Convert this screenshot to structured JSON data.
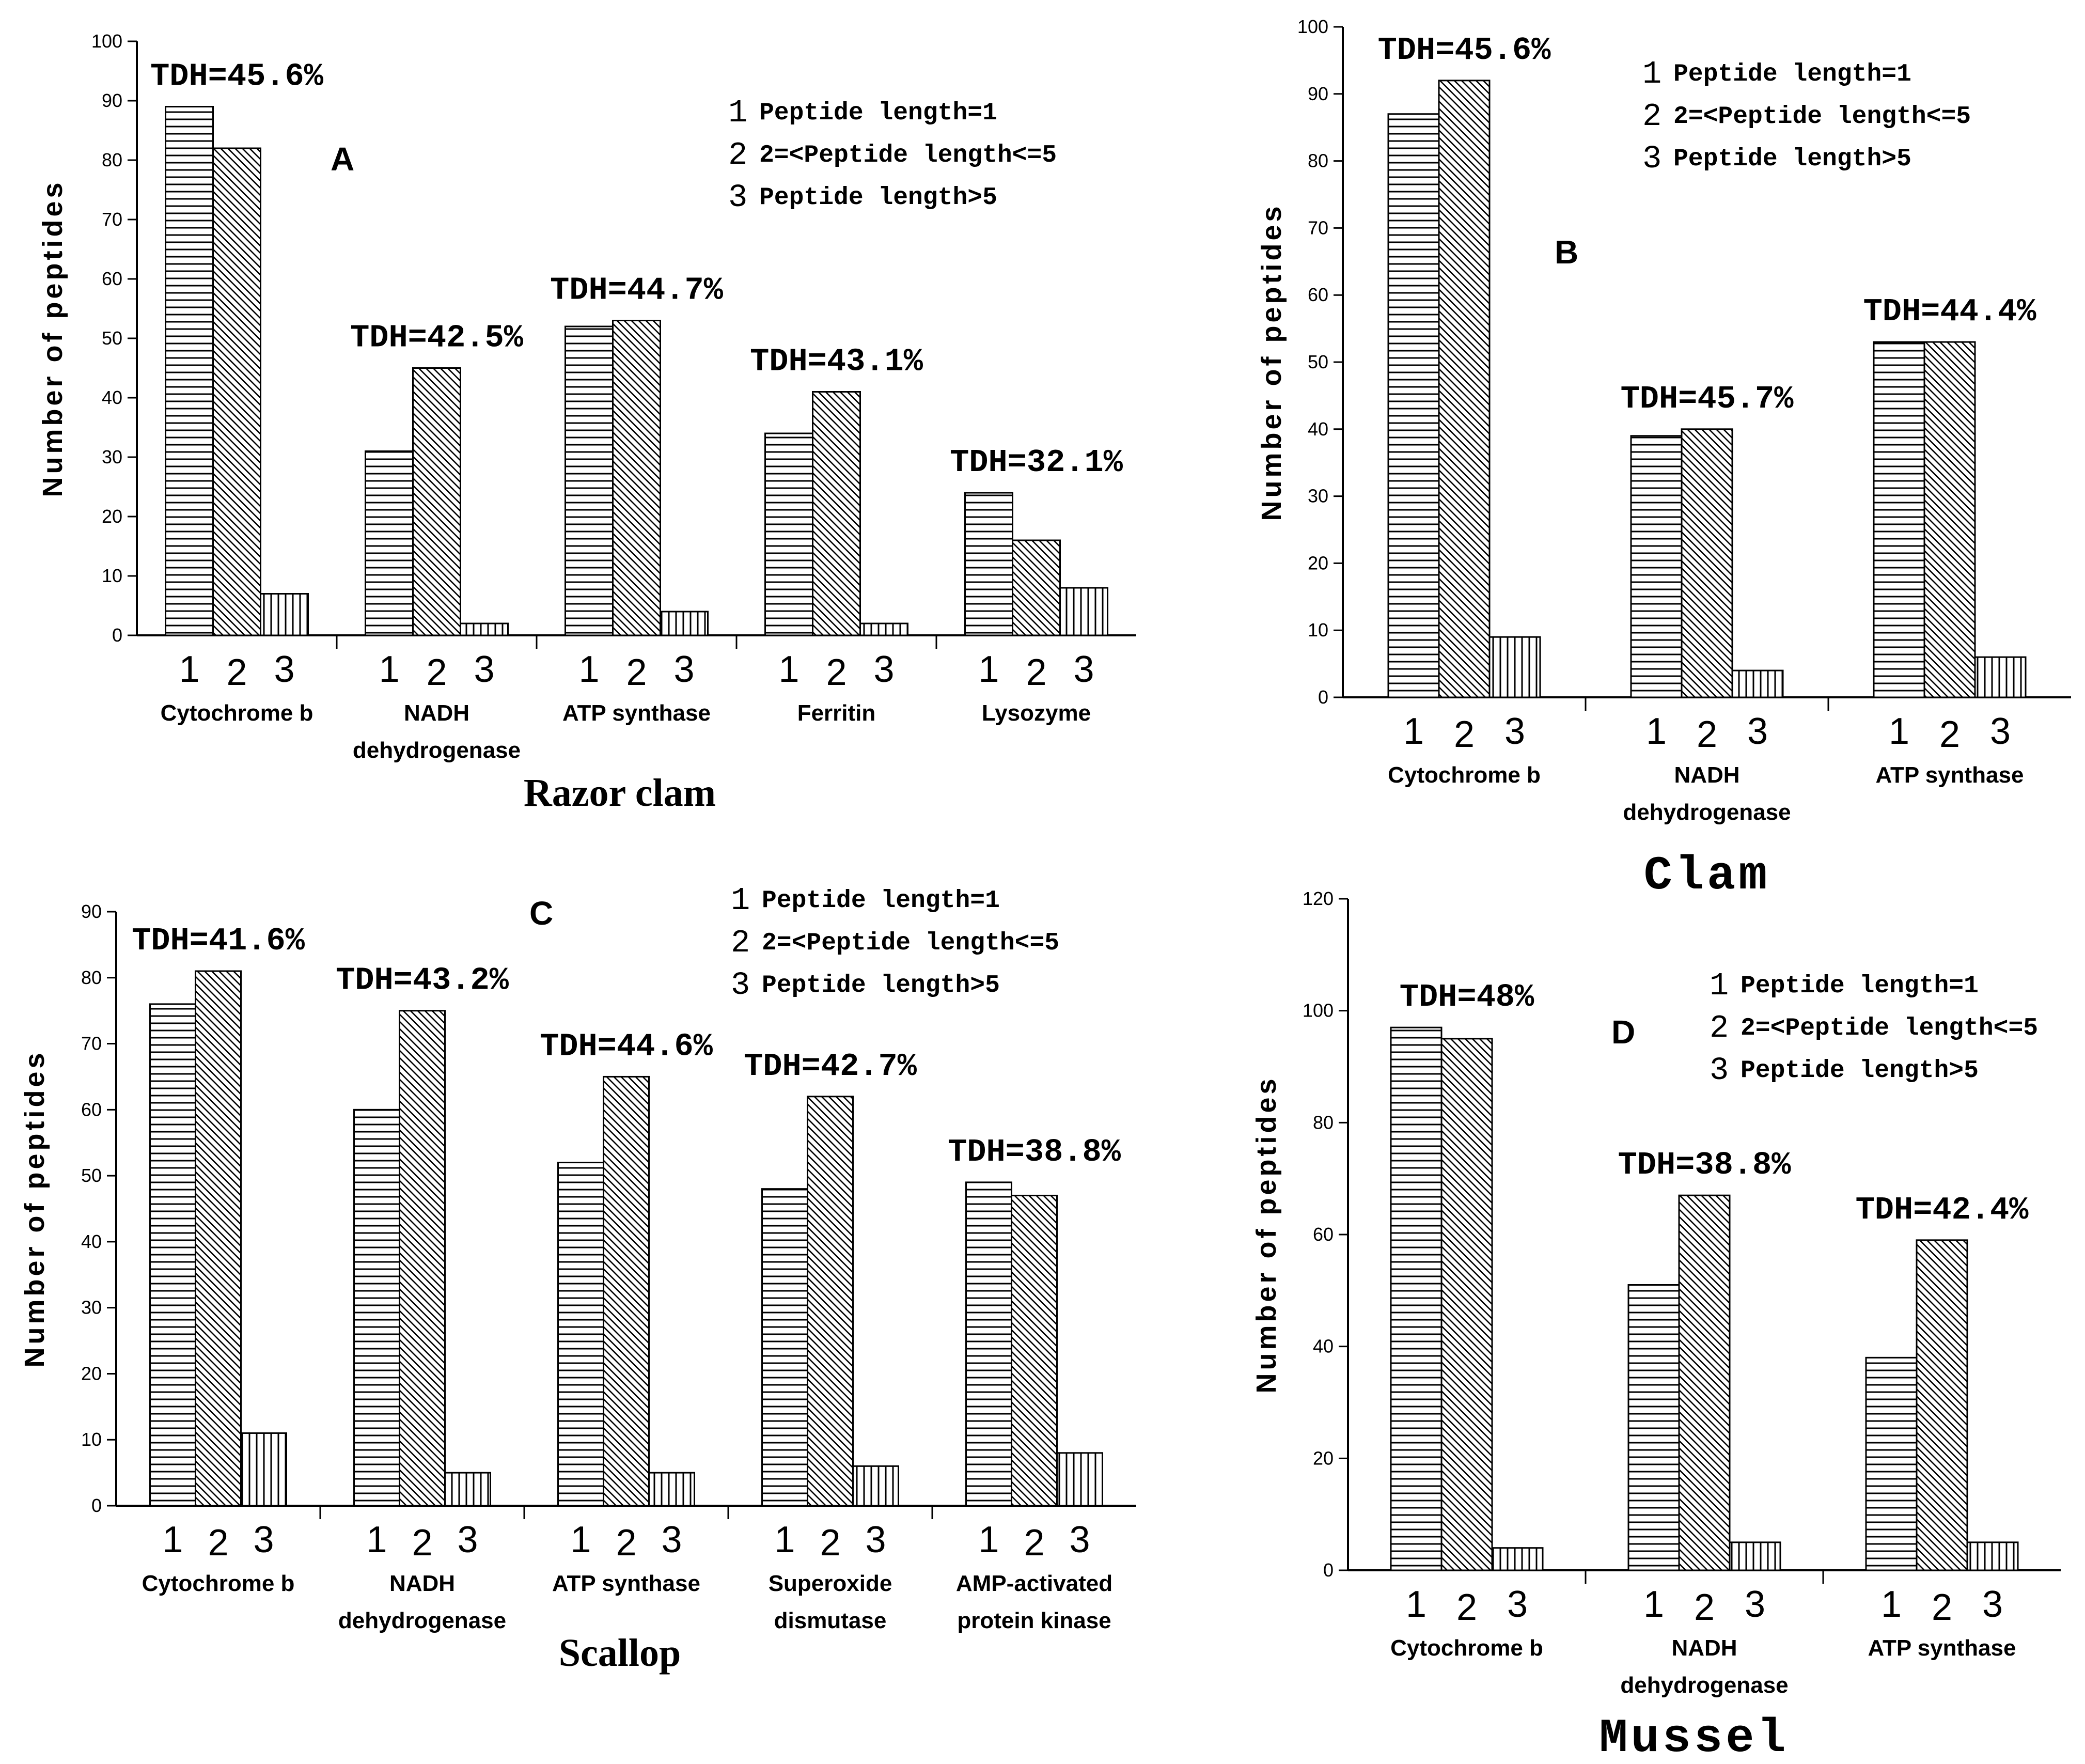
{
  "chart_data": [
    {
      "id": "A",
      "type": "bar",
      "panel_letter": "A",
      "title": "Razor clam",
      "ylabel": "Number of peptides",
      "ylim": [
        0,
        100
      ],
      "yticks": [
        0,
        10,
        20,
        30,
        40,
        50,
        60,
        70,
        80,
        90,
        100
      ],
      "series_labels": [
        "1",
        "2",
        "3"
      ],
      "legend": [
        {
          "num": "1",
          "text": "Peptide length=1"
        },
        {
          "num": "2",
          "text": "2=<Peptide length<=5"
        },
        {
          "num": "3",
          "text": "Peptide length>5"
        }
      ],
      "groups": [
        {
          "name": [
            "Cytochrome b"
          ],
          "values": [
            89,
            82,
            7
          ],
          "tdh": "TDH=45.6%"
        },
        {
          "name": [
            "NADH",
            "dehydrogenase"
          ],
          "values": [
            31,
            45,
            2
          ],
          "tdh": "TDH=42.5%"
        },
        {
          "name": [
            "ATP synthase"
          ],
          "values": [
            52,
            53,
            4
          ],
          "tdh": "TDH=44.7%"
        },
        {
          "name": [
            "Ferritin"
          ],
          "values": [
            34,
            41,
            2
          ],
          "tdh": "TDH=43.1%"
        },
        {
          "name": [
            "Lysozyme"
          ],
          "values": [
            24,
            16,
            8
          ],
          "tdh": "TDH=32.1%"
        }
      ]
    },
    {
      "id": "B",
      "type": "bar",
      "panel_letter": "B",
      "title": "Clam",
      "ylabel": "Number of peptides",
      "ylim": [
        0,
        100
      ],
      "yticks": [
        0,
        10,
        20,
        30,
        40,
        50,
        60,
        70,
        80,
        90,
        100
      ],
      "series_labels": [
        "1",
        "2",
        "3"
      ],
      "legend": [
        {
          "num": "1",
          "text": "Peptide length=1"
        },
        {
          "num": "2",
          "text": "2=<Peptide length<=5"
        },
        {
          "num": "3",
          "text": "Peptide length>5"
        }
      ],
      "groups": [
        {
          "name": [
            "Cytochrome b"
          ],
          "values": [
            87,
            92,
            9
          ],
          "tdh": "TDH=45.6%"
        },
        {
          "name": [
            "NADH",
            "dehydrogenase"
          ],
          "values": [
            39,
            40,
            4
          ],
          "tdh": "TDH=45.7%"
        },
        {
          "name": [
            "ATP synthase"
          ],
          "values": [
            53,
            53,
            6
          ],
          "tdh": "TDH=44.4%"
        }
      ]
    },
    {
      "id": "C",
      "type": "bar",
      "panel_letter": "C",
      "title": "Scallop",
      "ylabel": "Number of peptides",
      "ylim": [
        0,
        90
      ],
      "yticks": [
        0,
        10,
        20,
        30,
        40,
        50,
        60,
        70,
        80,
        90
      ],
      "series_labels": [
        "1",
        "2",
        "3"
      ],
      "legend": [
        {
          "num": "1",
          "text": "Peptide length=1"
        },
        {
          "num": "2",
          "text": "2=<Peptide length<=5"
        },
        {
          "num": "3",
          "text": "Peptide length>5"
        }
      ],
      "groups": [
        {
          "name": [
            "Cytochrome b"
          ],
          "values": [
            76,
            81,
            11
          ],
          "tdh": "TDH=41.6%"
        },
        {
          "name": [
            "NADH",
            "dehydrogenase"
          ],
          "values": [
            60,
            75,
            5
          ],
          "tdh": "TDH=43.2%"
        },
        {
          "name": [
            "ATP synthase"
          ],
          "values": [
            52,
            65,
            5
          ],
          "tdh": "TDH=44.6%"
        },
        {
          "name": [
            "Superoxide",
            "dismutase"
          ],
          "values": [
            48,
            62,
            6
          ],
          "tdh": "TDH=42.7%"
        },
        {
          "name": [
            "AMP-activated",
            "protein kinase"
          ],
          "values": [
            49,
            47,
            8
          ],
          "tdh": "TDH=38.8%"
        }
      ]
    },
    {
      "id": "D",
      "type": "bar",
      "panel_letter": "D",
      "title": "Mussel",
      "ylabel": "Number of peptides",
      "ylim": [
        0,
        120
      ],
      "yticks": [
        0,
        20,
        40,
        60,
        80,
        100,
        120
      ],
      "series_labels": [
        "1",
        "2",
        "3"
      ],
      "legend": [
        {
          "num": "1",
          "text": "Peptide length=1"
        },
        {
          "num": "2",
          "text": "2=<Peptide length<=5"
        },
        {
          "num": "3",
          "text": "Peptide length>5"
        }
      ],
      "groups": [
        {
          "name": [
            "Cytochrome b"
          ],
          "values": [
            97,
            95,
            4
          ],
          "tdh": "TDH=48%"
        },
        {
          "name": [
            "NADH",
            "dehydrogenase"
          ],
          "values": [
            51,
            67,
            5
          ],
          "tdh": "TDH=38.8%"
        },
        {
          "name": [
            "ATP synthase"
          ],
          "values": [
            38,
            59,
            5
          ],
          "tdh": "TDH=42.4%"
        }
      ]
    }
  ]
}
